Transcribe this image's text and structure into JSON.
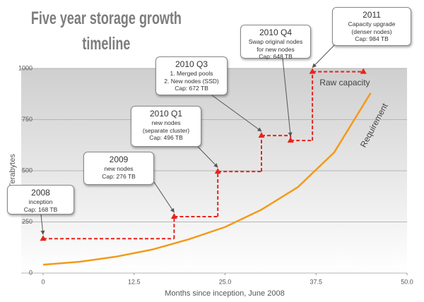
{
  "chart_data": {
    "type": "line",
    "title": "Five year storage growth timeline",
    "x_label": "Months since inception, June 2008",
    "y_label": "Terabytes",
    "xlim": [
      0,
      50
    ],
    "xticks": [
      0,
      12.5,
      {
        "value": 25,
        "label": "25.0"
      },
      37.5,
      {
        "value": 50,
        "label": "50.0"
      }
    ],
    "ylim": [
      0,
      1000
    ],
    "yticks": [
      0,
      250,
      500,
      750,
      1000
    ],
    "grid": true,
    "series": [
      {
        "name": "Raw capacity",
        "color": "#e8231b",
        "step": true,
        "x": [
          0,
          18,
          24,
          30,
          34,
          37,
          44
        ],
        "values": [
          168,
          276,
          496,
          672,
          648,
          984,
          984
        ]
      },
      {
        "name": "Requirement",
        "color": "#f39a1a",
        "x": [
          0,
          5,
          10,
          15,
          20,
          25,
          30,
          35,
          40,
          45
        ],
        "values": [
          41,
          55,
          80,
          115,
          165,
          225,
          310,
          420,
          590,
          880
        ]
      }
    ],
    "annotations": [
      {
        "lines": [
          "2008",
          "inception",
          "Cap: 168 TB"
        ]
      },
      {
        "lines": [
          "2009",
          "new nodes",
          "Cap: 276 TB"
        ]
      },
      {
        "lines": [
          "2010 Q1",
          "new nodes",
          "(separate cluster)",
          "Cap: 496 TB"
        ]
      },
      {
        "lines": [
          "2010 Q3",
          "1. Merged pools",
          "2. New nodes (SSD)",
          "Cap: 672 TB"
        ]
      },
      {
        "lines": [
          "2010 Q4",
          "Swap original nodes",
          "for new nodes",
          "Cap: 648 TB"
        ]
      },
      {
        "lines": [
          "2011",
          "Capacity upgrade",
          "(denser nodes)",
          "Cap: 984 TB"
        ]
      }
    ]
  }
}
